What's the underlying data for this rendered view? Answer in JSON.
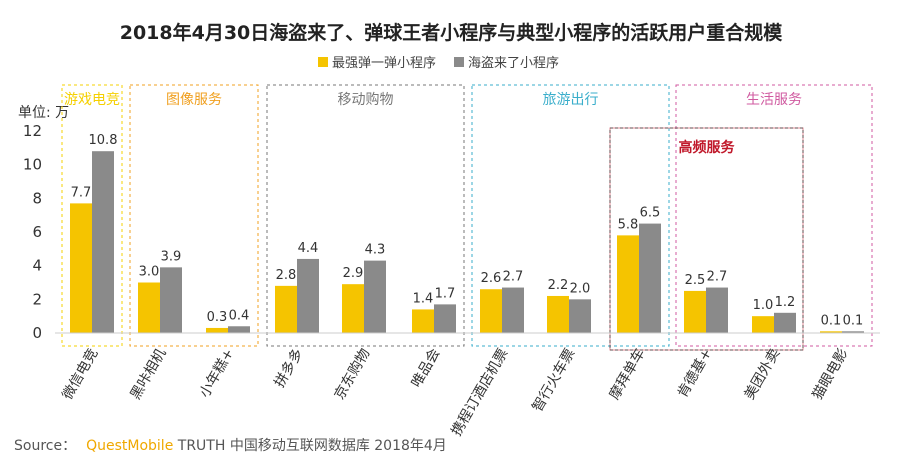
{
  "chart_data": {
    "type": "bar",
    "title": "2018年4月30日海盗来了、弹球王者小程序与典型小程序的活跃用户重合规模",
    "ylabel": "单位: 万",
    "ylim": [
      0,
      12
    ],
    "yticks": [
      0,
      2,
      4,
      6,
      8,
      10,
      12
    ],
    "legend_position": "top",
    "grid": false,
    "categories": [
      "微信电竞",
      "黑咔相机",
      "小年糕+",
      "拼多多",
      "京东购物",
      "唯品会",
      "携程订酒店机票",
      "智行火车票",
      "摩拜单车",
      "肯德基+",
      "美团外卖",
      "猫眼电影"
    ],
    "series": [
      {
        "name": "最强弹一弹小程序",
        "color": "#f5c400",
        "values": [
          7.7,
          3.0,
          0.3,
          2.8,
          2.9,
          1.4,
          2.6,
          2.2,
          5.8,
          2.5,
          1.0,
          0.1
        ]
      },
      {
        "name": "海盗来了小程序",
        "color": "#8a8a8a",
        "values": [
          10.8,
          3.9,
          0.4,
          4.4,
          4.3,
          1.7,
          2.7,
          2.0,
          6.5,
          2.7,
          1.2,
          0.1
        ]
      }
    ],
    "groups": [
      {
        "label": "游戏电竞",
        "color": "#f5d000",
        "from": 0,
        "to": 0
      },
      {
        "label": "图像服务",
        "color": "#f0a020",
        "from": 1,
        "to": 2
      },
      {
        "label": "移动购物",
        "color": "#777777",
        "from": 3,
        "to": 5
      },
      {
        "label": "旅游出行",
        "color": "#3aaecb",
        "from": 6,
        "to": 8
      },
      {
        "label": "生活服务",
        "color": "#d05aa0",
        "from": 9,
        "to": 11
      }
    ],
    "highlight": {
      "label": "高频服务",
      "color": "#c0182a",
      "from": 8,
      "to": 10
    }
  },
  "source": {
    "prefix": "Source：",
    "brand": "QuestMobile",
    "text": "TRUTH 中国移动互联网数据库 2018年4月"
  }
}
